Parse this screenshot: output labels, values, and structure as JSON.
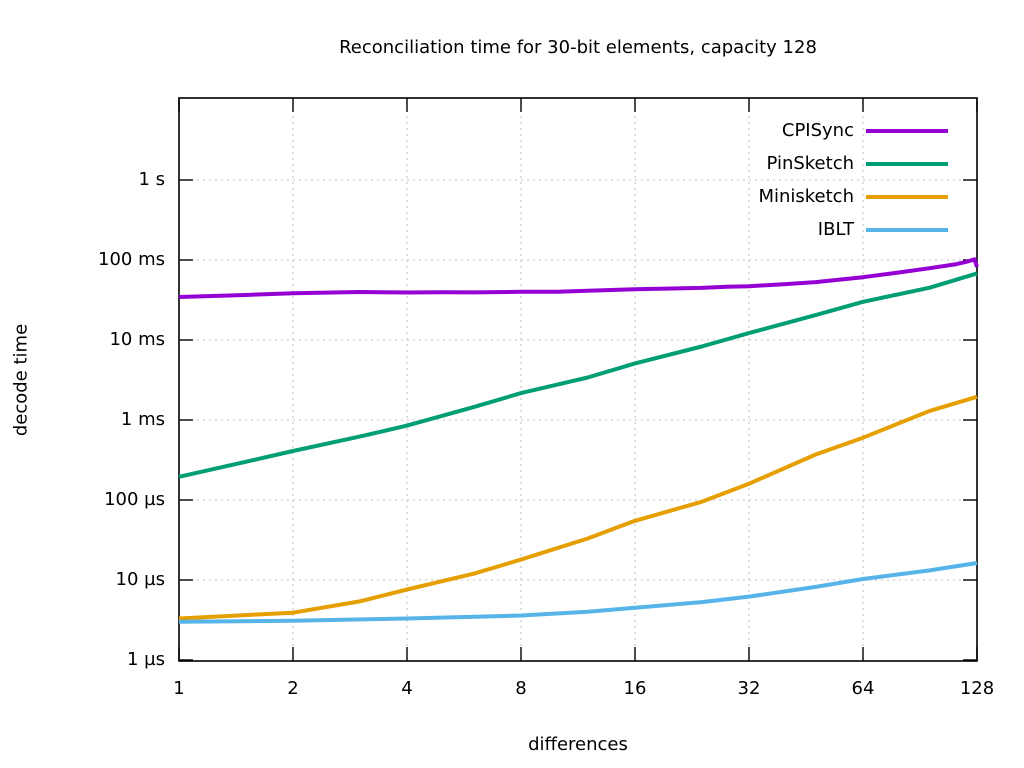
{
  "chart_data": {
    "type": "line",
    "title": "Reconciliation time for 30-bit elements, capacity 128",
    "xlabel": "differences",
    "ylabel": "decode time",
    "x_scale": "log2",
    "y_scale": "log10",
    "x_ticks": [
      1,
      2,
      4,
      8,
      16,
      32,
      64,
      128
    ],
    "y_ticks": [
      {
        "us": 1,
        "label": "1 µs"
      },
      {
        "us": 10,
        "label": "10 µs"
      },
      {
        "us": 100,
        "label": "100 µs"
      },
      {
        "us": 1000,
        "label": "1 ms"
      },
      {
        "us": 10000,
        "label": "10 ms"
      },
      {
        "us": 100000,
        "label": "100 ms"
      },
      {
        "us": 1000000,
        "label": "1 s"
      }
    ],
    "xlim": [
      1,
      128
    ],
    "ylim_us": [
      1,
      10000000
    ],
    "grid": "dashed",
    "legend_position": "top-right-inside",
    "series": [
      {
        "name": "CPISync",
        "color": "#9400d3",
        "points_x_diffs_y_us": [
          [
            1,
            34500
          ],
          [
            1.5,
            36500
          ],
          [
            2,
            38500
          ],
          [
            3,
            39800
          ],
          [
            4,
            39200
          ],
          [
            5,
            39500
          ],
          [
            6,
            39300
          ],
          [
            8,
            40000
          ],
          [
            10,
            40200
          ],
          [
            12,
            41200
          ],
          [
            16,
            43000
          ],
          [
            20,
            44000
          ],
          [
            24,
            44800
          ],
          [
            28,
            46200
          ],
          [
            32,
            47000
          ],
          [
            40,
            50000
          ],
          [
            48,
            53000
          ],
          [
            56,
            57000
          ],
          [
            64,
            61000
          ],
          [
            80,
            70000
          ],
          [
            96,
            79000
          ],
          [
            112,
            88000
          ],
          [
            120,
            95000
          ],
          [
            126,
            102000
          ],
          [
            128,
            82000
          ]
        ]
      },
      {
        "name": "PinSketch",
        "color": "#009e73",
        "points_x_diffs_y_us": [
          [
            1,
            195
          ],
          [
            1.5,
            300
          ],
          [
            2,
            410
          ],
          [
            3,
            620
          ],
          [
            4,
            850
          ],
          [
            6,
            1450
          ],
          [
            8,
            2170
          ],
          [
            12,
            3400
          ],
          [
            16,
            5100
          ],
          [
            24,
            8300
          ],
          [
            32,
            12200
          ],
          [
            48,
            20500
          ],
          [
            64,
            30000
          ],
          [
            96,
            45000
          ],
          [
            128,
            68000
          ]
        ]
      },
      {
        "name": "Minisketch",
        "color": "#e69f00",
        "points_x_diffs_y_us": [
          [
            1,
            3.3
          ],
          [
            2,
            3.9
          ],
          [
            3,
            5.4
          ],
          [
            4,
            7.6
          ],
          [
            6,
            12
          ],
          [
            8,
            18
          ],
          [
            12,
            33
          ],
          [
            16,
            55
          ],
          [
            24,
            95
          ],
          [
            32,
            160
          ],
          [
            48,
            370
          ],
          [
            64,
            600
          ],
          [
            96,
            1300
          ],
          [
            128,
            1950
          ]
        ]
      },
      {
        "name": "IBLT",
        "color": "#56b4e9",
        "points_x_diffs_y_us": [
          [
            1,
            3.0
          ],
          [
            2,
            3.1
          ],
          [
            4,
            3.3
          ],
          [
            8,
            3.6
          ],
          [
            12,
            4.0
          ],
          [
            16,
            4.5
          ],
          [
            24,
            5.3
          ],
          [
            32,
            6.2
          ],
          [
            48,
            8.2
          ],
          [
            64,
            10.3
          ],
          [
            96,
            13.2
          ],
          [
            128,
            16.3
          ]
        ]
      }
    ]
  }
}
